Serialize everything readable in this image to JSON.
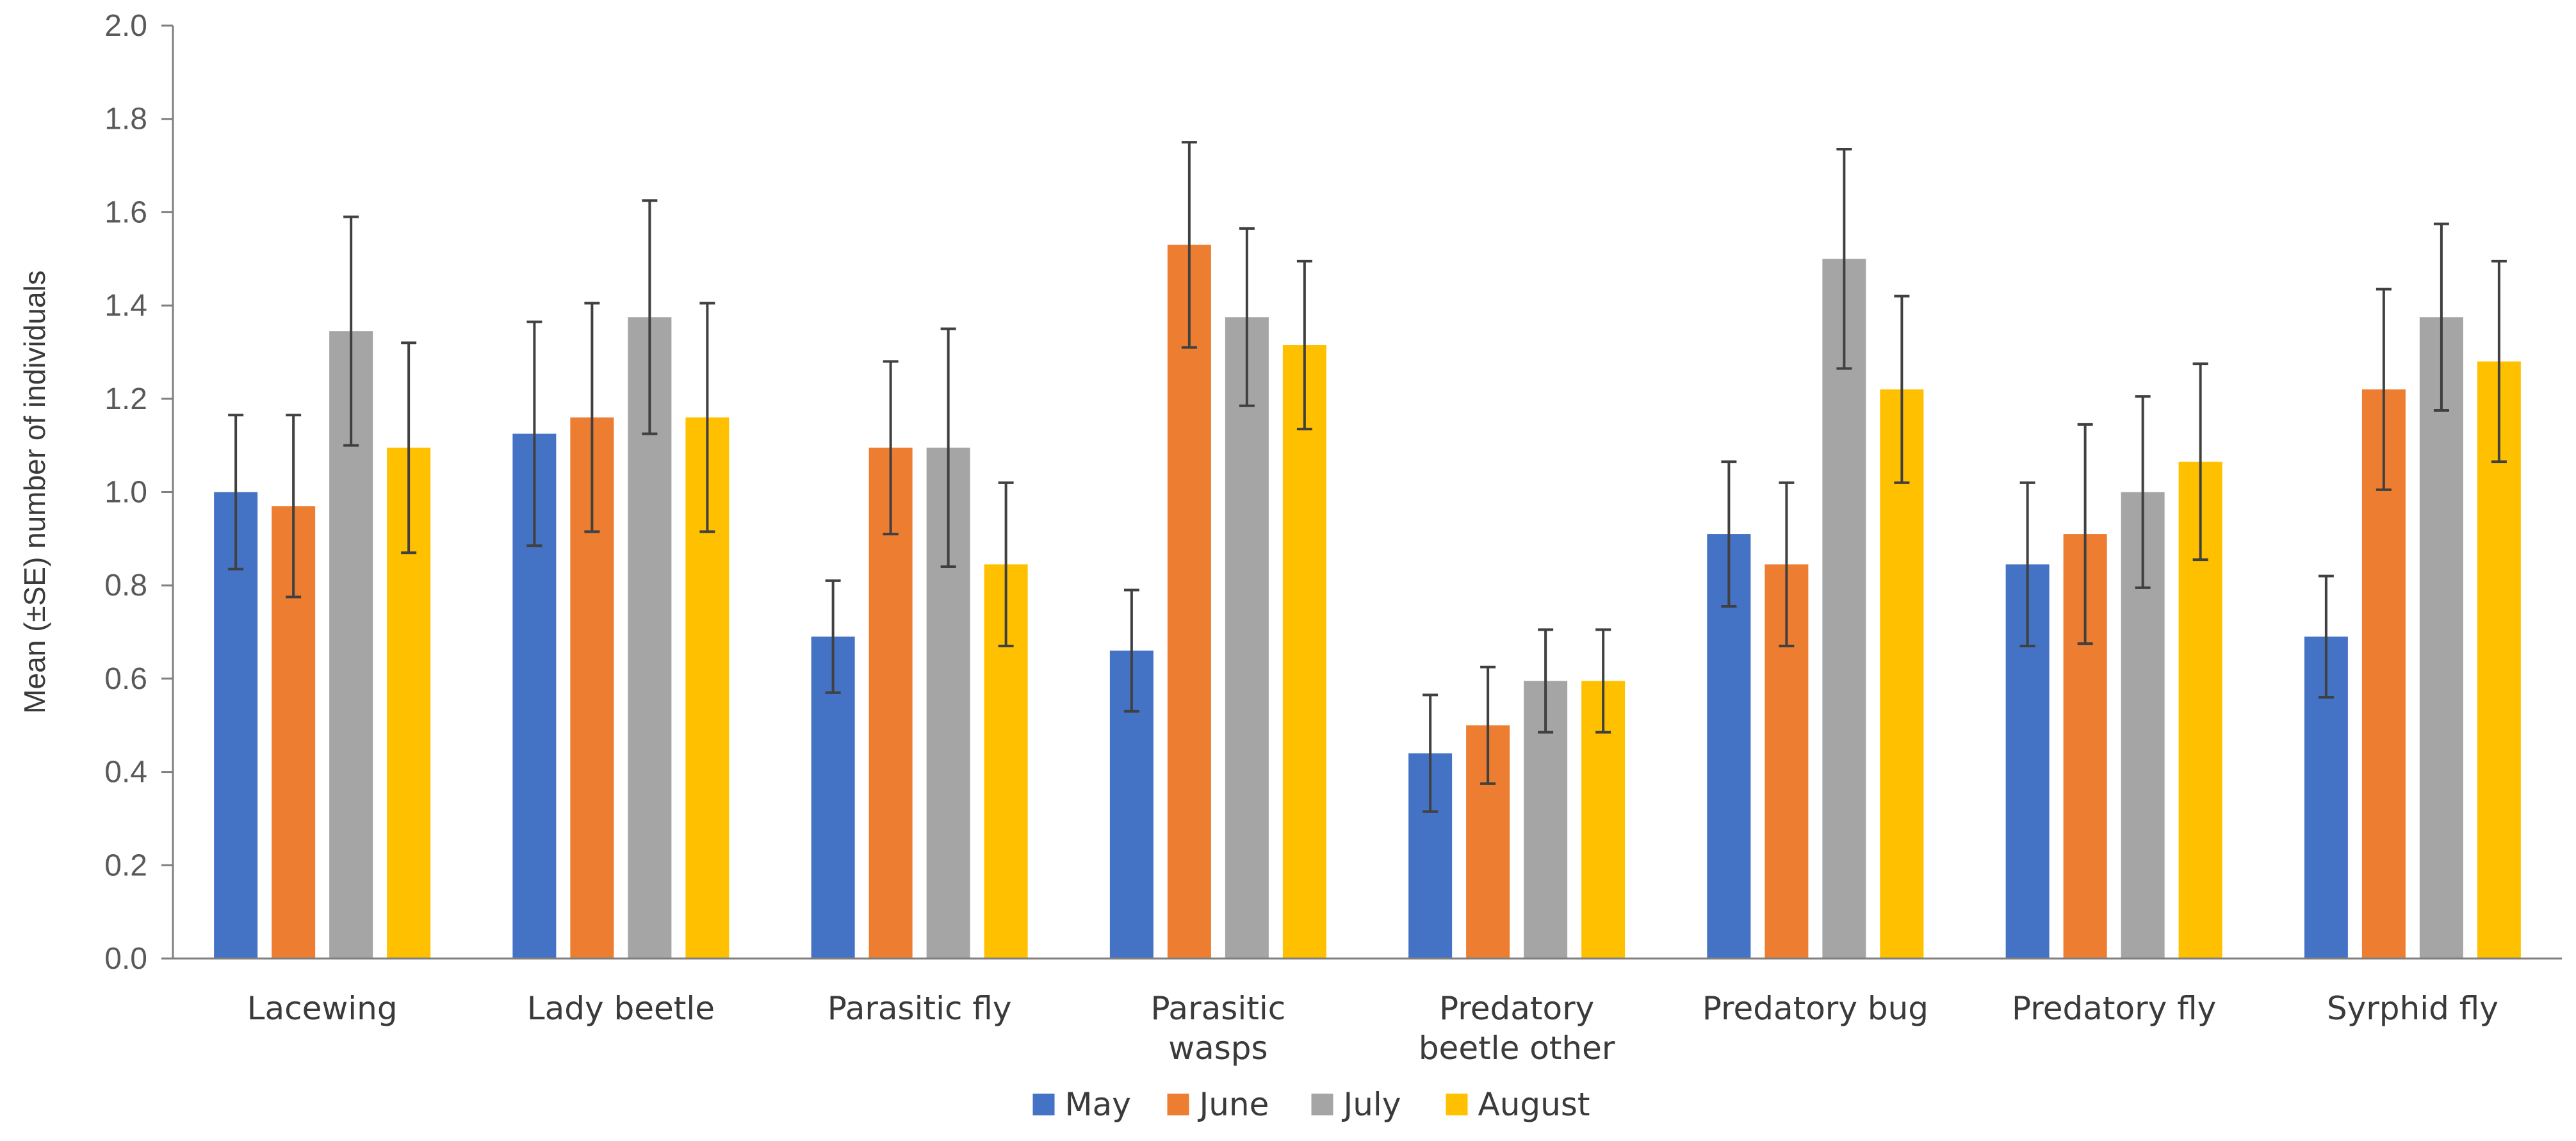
{
  "chart_data": {
    "type": "bar",
    "title": "",
    "xlabel": "",
    "ylabel": "Mean (±SE) number of individuals",
    "ylim": [
      0,
      2.0
    ],
    "yticks": [
      "0.0",
      "0.2",
      "0.4",
      "0.6",
      "0.8",
      "1.0",
      "1.2",
      "1.4",
      "1.6",
      "1.8",
      "2.0"
    ],
    "grid": false,
    "legend_position": "bottom",
    "categories": [
      [
        "Lacewing"
      ],
      [
        "Lady beetle"
      ],
      [
        "Parasitic fly"
      ],
      [
        "Parasitic",
        "wasps"
      ],
      [
        "Predatory",
        "beetle other"
      ],
      [
        "Predatory bug"
      ],
      [
        "Predatory fly"
      ],
      [
        "Syrphid fly"
      ]
    ],
    "series": [
      {
        "name": "May",
        "color": "#4472C4",
        "values": [
          1.0,
          1.125,
          0.69,
          0.66,
          0.44,
          0.91,
          0.845,
          0.69
        ],
        "se": [
          0.165,
          0.24,
          0.12,
          0.13,
          0.125,
          0.155,
          0.175,
          0.13
        ]
      },
      {
        "name": "June",
        "color": "#ED7D31",
        "values": [
          0.97,
          1.16,
          1.095,
          1.53,
          0.5,
          0.845,
          0.91,
          1.22
        ],
        "se": [
          0.195,
          0.245,
          0.185,
          0.22,
          0.125,
          0.175,
          0.235,
          0.215
        ]
      },
      {
        "name": "July",
        "color": "#A5A5A5",
        "values": [
          1.345,
          1.375,
          1.095,
          1.375,
          0.595,
          1.5,
          1.0,
          1.375
        ],
        "se": [
          0.245,
          0.25,
          0.255,
          0.19,
          0.11,
          0.235,
          0.205,
          0.2
        ]
      },
      {
        "name": "August",
        "color": "#FFC000",
        "values": [
          1.095,
          1.16,
          0.845,
          1.315,
          0.595,
          1.22,
          1.065,
          1.28
        ],
        "se": [
          0.225,
          0.245,
          0.175,
          0.18,
          0.11,
          0.2,
          0.21,
          0.215
        ]
      }
    ]
  }
}
